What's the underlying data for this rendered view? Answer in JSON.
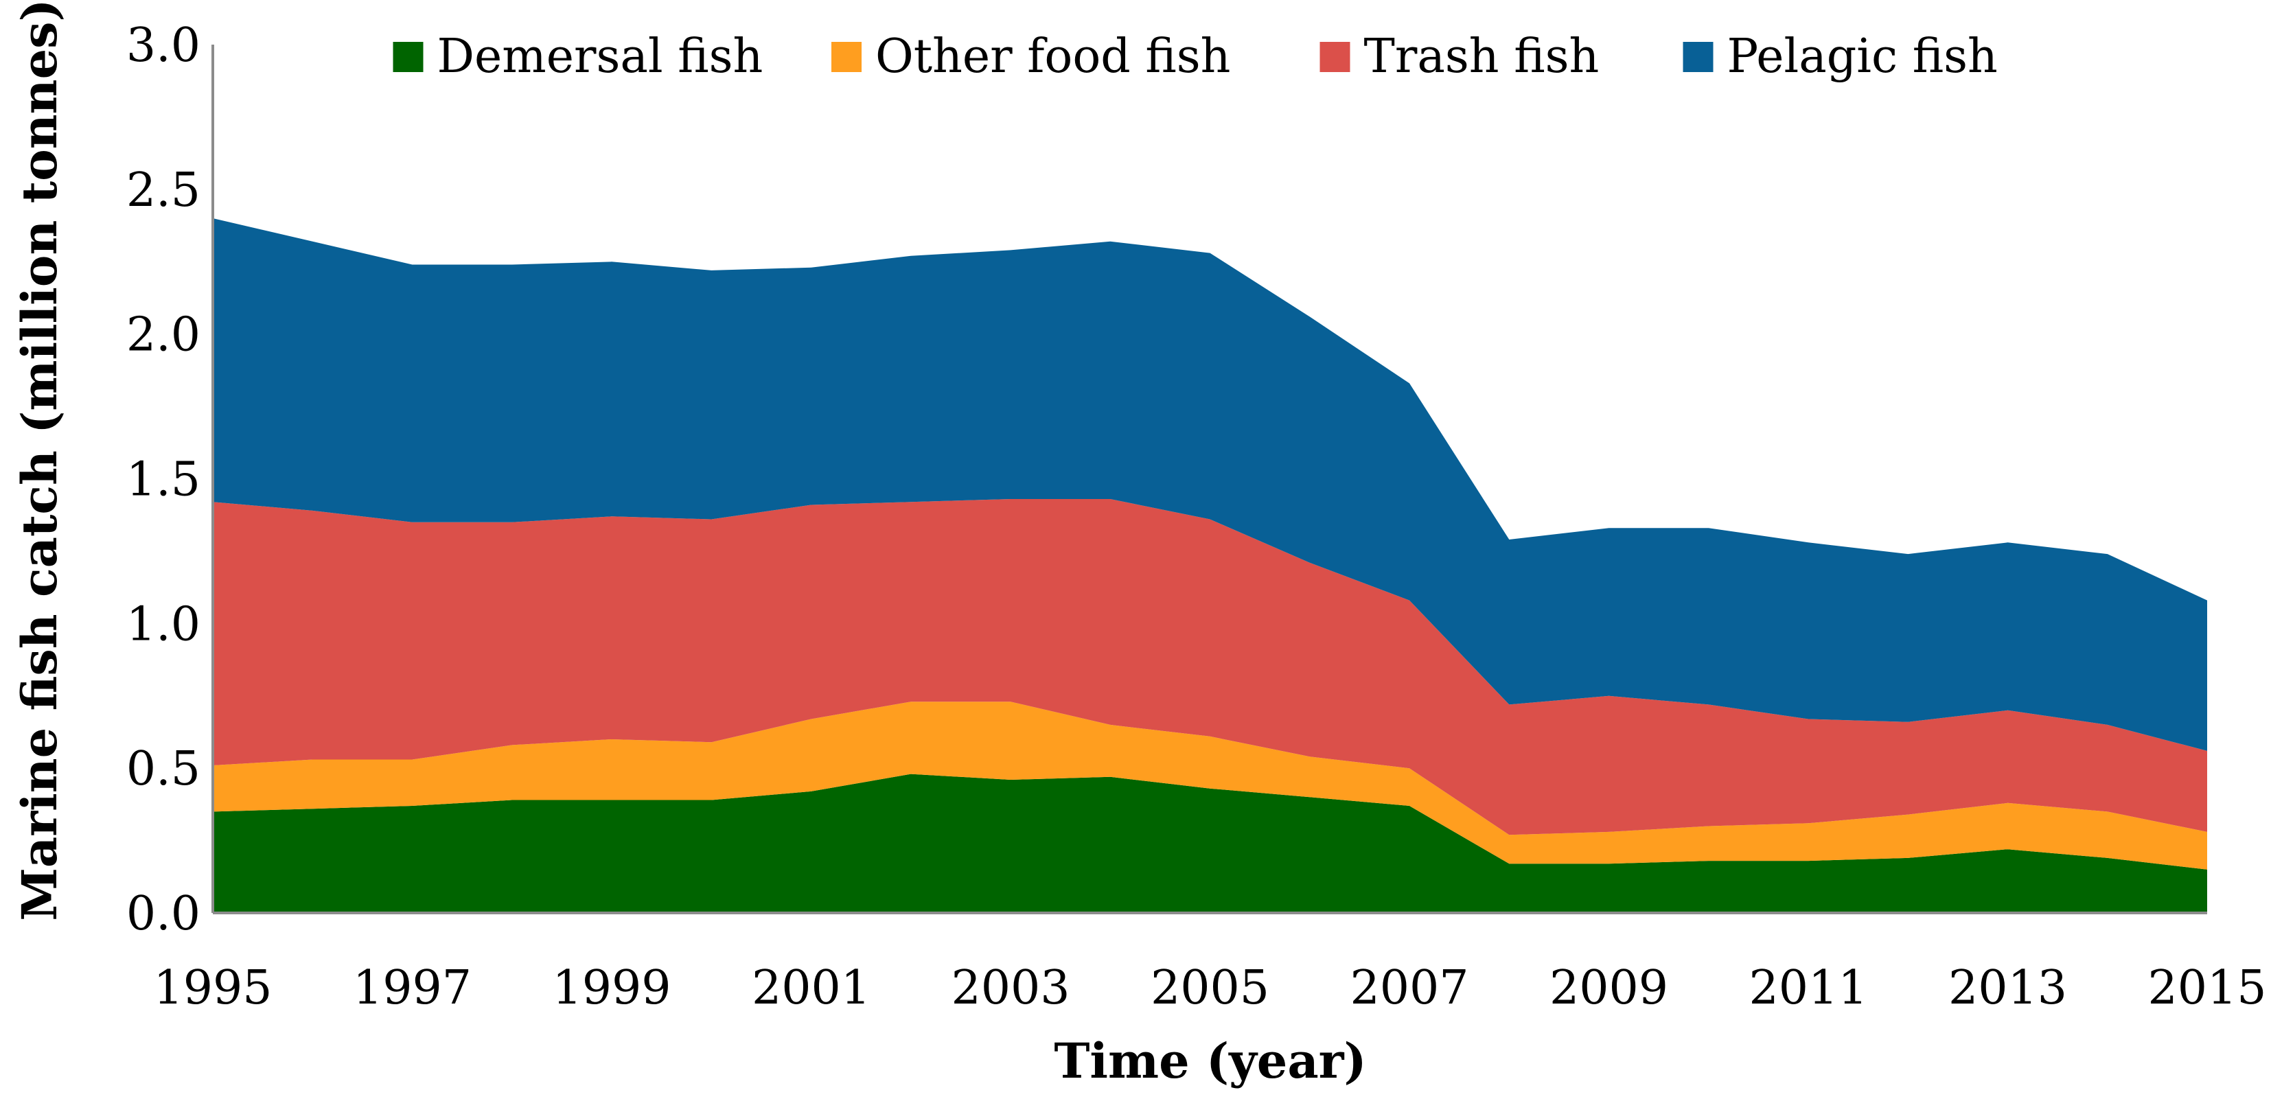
{
  "chart_data": {
    "type": "area",
    "stacked": true,
    "title": "",
    "xlabel": "Time (year)",
    "ylabel": "Marine fish catch (million tonnes)",
    "ylim": [
      0,
      3
    ],
    "y_ticks": [
      "0.0",
      "0.5",
      "1.0",
      "1.5",
      "2.0",
      "2.5",
      "3.0"
    ],
    "x_tick_labels": [
      "1995",
      "1997",
      "1999",
      "2001",
      "2003",
      "2005",
      "2007",
      "2009",
      "2011",
      "2013",
      "2015"
    ],
    "x": [
      1995,
      1996,
      1997,
      1998,
      1999,
      2000,
      2001,
      2002,
      2003,
      2004,
      2005,
      2006,
      2007,
      2008,
      2009,
      2010,
      2011,
      2012,
      2013,
      2014,
      2015
    ],
    "legend_position": "top",
    "series": [
      {
        "name": "Demersal fish",
        "color": "#006400",
        "values": [
          0.35,
          0.36,
          0.37,
          0.39,
          0.39,
          0.39,
          0.42,
          0.48,
          0.46,
          0.47,
          0.43,
          0.4,
          0.37,
          0.17,
          0.17,
          0.18,
          0.18,
          0.19,
          0.22,
          0.19,
          0.15
        ]
      },
      {
        "name": "Other food fish",
        "color": "#FF9E1F",
        "values": [
          0.16,
          0.17,
          0.16,
          0.19,
          0.21,
          0.2,
          0.25,
          0.25,
          0.27,
          0.18,
          0.18,
          0.14,
          0.13,
          0.1,
          0.11,
          0.12,
          0.13,
          0.15,
          0.16,
          0.16,
          0.13
        ]
      },
      {
        "name": "Trash fish",
        "color": "#DB504A",
        "values": [
          0.91,
          0.86,
          0.82,
          0.77,
          0.77,
          0.77,
          0.74,
          0.69,
          0.7,
          0.78,
          0.75,
          0.67,
          0.58,
          0.45,
          0.47,
          0.42,
          0.36,
          0.32,
          0.32,
          0.3,
          0.28
        ]
      },
      {
        "name": "Pelagic fish",
        "color": "#086096",
        "values": [
          0.98,
          0.93,
          0.89,
          0.89,
          0.88,
          0.86,
          0.82,
          0.85,
          0.86,
          0.89,
          0.92,
          0.85,
          0.75,
          0.57,
          0.58,
          0.61,
          0.61,
          0.58,
          0.58,
          0.59,
          0.52
        ]
      }
    ]
  }
}
